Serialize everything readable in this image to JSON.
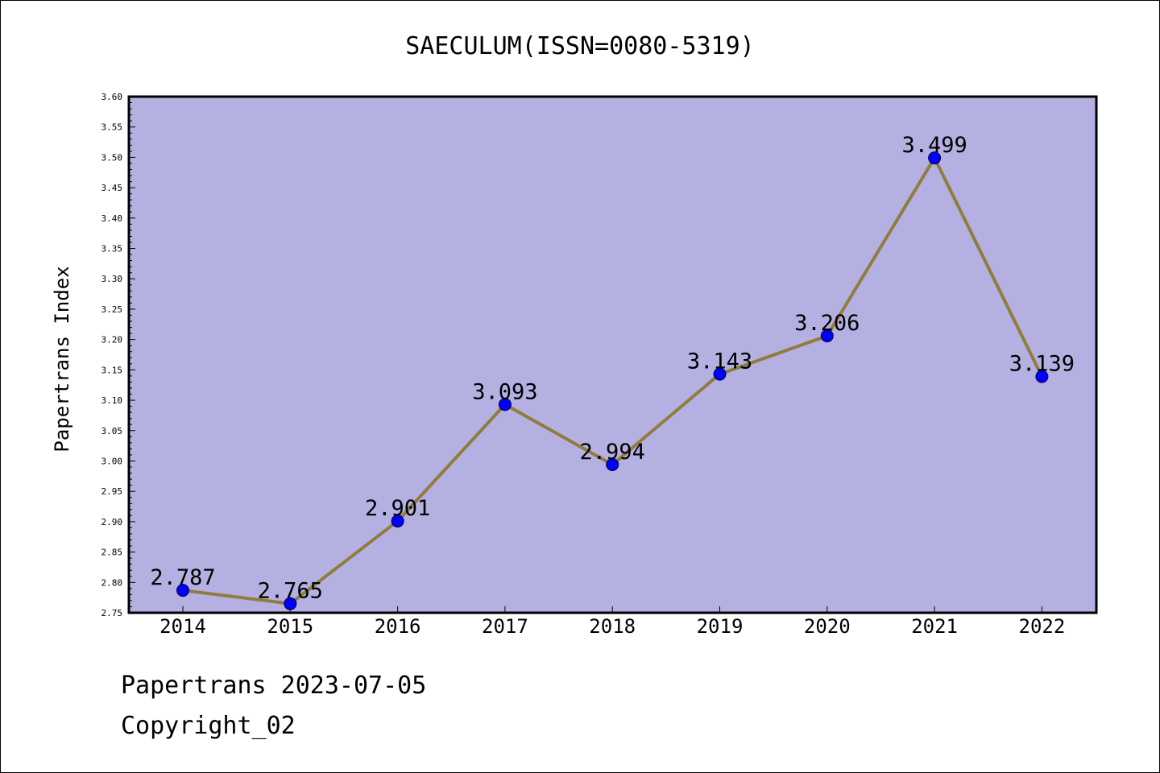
{
  "chart_data": {
    "type": "line",
    "title": "SAECULUM(ISSN=0080-5319)",
    "ylabel": "Papertrans Index",
    "xlabel": "",
    "categories": [
      "2014",
      "2015",
      "2016",
      "2017",
      "2018",
      "2019",
      "2020",
      "2021",
      "2022"
    ],
    "values": [
      2.787,
      2.765,
      2.901,
      3.093,
      2.994,
      3.143,
      3.206,
      3.499,
      3.139
    ],
    "data_labels": [
      "2.787",
      "2.765",
      "2.901",
      "3.093",
      "2.994",
      "3.143",
      "3.206",
      "3.499",
      "3.139"
    ],
    "ylim": [
      2.75,
      3.6
    ],
    "yticks": [
      "2.75",
      "2.80",
      "2.85",
      "2.90",
      "2.95",
      "3.00",
      "3.05",
      "3.10",
      "3.15",
      "3.20",
      "3.25",
      "3.30",
      "3.35",
      "3.40",
      "3.45",
      "3.50",
      "3.55",
      "3.60"
    ],
    "grid": false,
    "colors": {
      "plot_background": "#b5b0e2",
      "line": "#8f7d3b",
      "marker": "#0000ff"
    }
  },
  "footer": {
    "line1": "Papertrans 2023-07-05",
    "line2": "Copyright_02"
  }
}
